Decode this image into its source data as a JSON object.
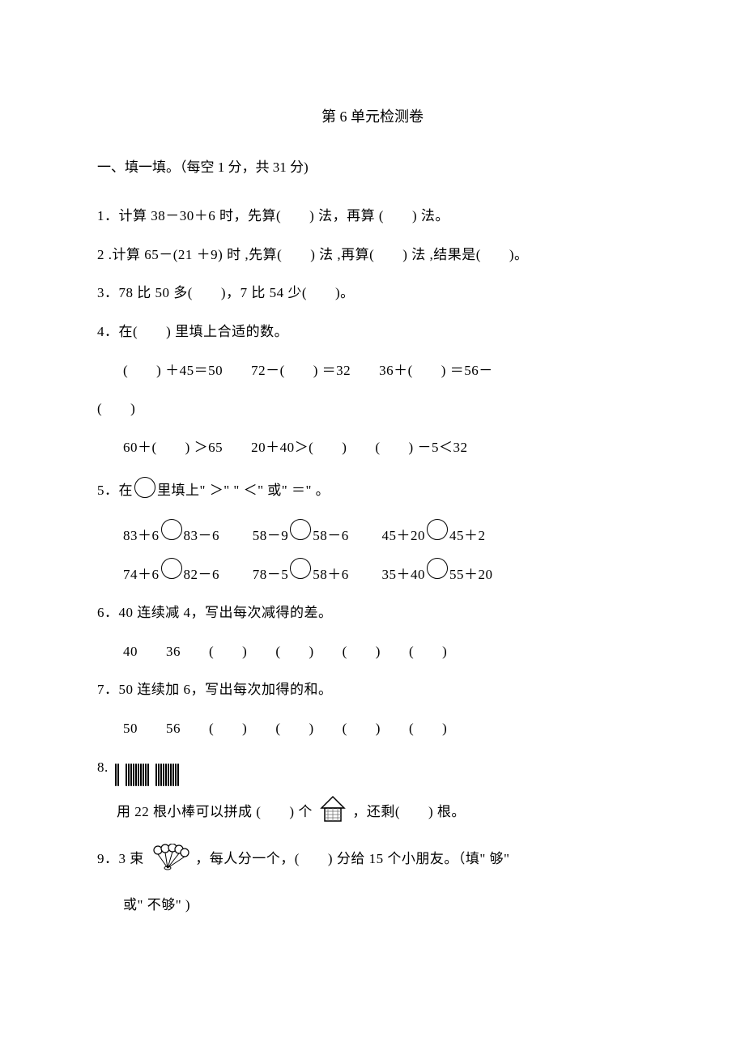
{
  "title": "第 6 单元检测卷",
  "section1": {
    "header": "一、填一填。（每空 1 分，共 31 分)",
    "q1": "1．计算 38－30＋6 时，先算(　　) 法，再算 (　　) 法。",
    "q2": "2 .计算 65－(21 ＋9) 时 ,先算(　　) 法 ,再算(　　) 法 ,结果是(　　)。",
    "q3": "3．78 比 50 多(　　)，7 比 54 少(　　)。",
    "q4": {
      "head": "4．在(　　) 里填上合适的数。",
      "line1": "(　　) ＋45＝50　　72－(　　) ＝32　　36＋(　　) ＝56－",
      "line1b": "(　　)",
      "line2": "60＋(　　) ＞65　　20＋40＞(　　)　　(　　) －5＜32"
    },
    "q5": {
      "head_a": "5．在",
      "head_b": "里填上\" ＞\" \" ＜\" 或\" ＝\" 。",
      "row1": [
        {
          "l": "83＋6",
          "r": "83－6"
        },
        {
          "l": "58－9",
          "r": "58－6"
        },
        {
          "l": "45＋20",
          "r": "45＋2"
        }
      ],
      "row2": [
        {
          "l": "74＋6",
          "r": "82－6"
        },
        {
          "l": "78－5",
          "r": "58＋6"
        },
        {
          "l": "35＋40",
          "r": "55＋20"
        }
      ]
    },
    "q6": {
      "head": "6．40 连续减 4，写出每次减得的差。",
      "line": "40　　36　　(　　)　　(　　)　　(　　)　　(　　)"
    },
    "q7": {
      "head": "7．50 连续加 6，写出每次加得的和。",
      "line": "50　　56　　(　　)　　(　　)　　(　　)　　(　　)"
    },
    "q8": {
      "num": "8.",
      "sticks": {
        "group1": 2,
        "group2": 10,
        "group3": 10
      },
      "line_a": "用 22 根小棒可以拼成 (　　) 个",
      "line_b": "，还剩(　　) 根。",
      "house": {
        "stroke": "#000000",
        "fill_roof": "#ffffff",
        "fill_body": "#ffffff",
        "hatch": "#6b6b6b"
      }
    },
    "q9": {
      "a": "9．3 束",
      "b": "，每人分一个，(　　) 分给 15 个小朋友。（填\" 够\"",
      "c": "或\" 不够\" )",
      "balloon": {
        "count": 5,
        "stroke": "#000000",
        "fill": "#ffffff"
      }
    }
  }
}
